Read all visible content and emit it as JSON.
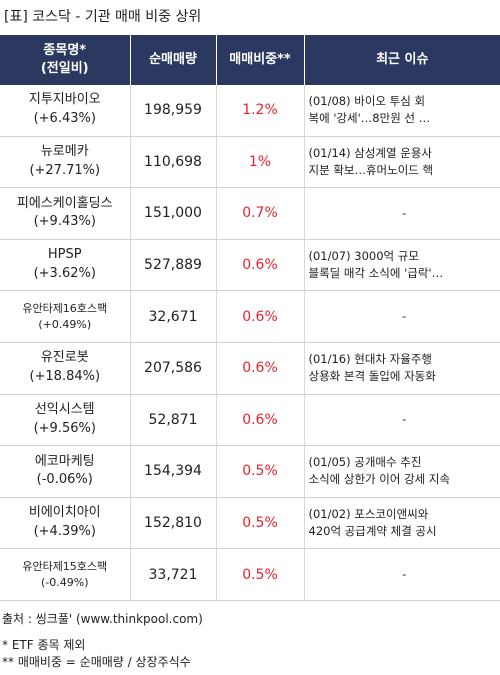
{
  "title": "[표] 코스닥 - 기관 매매 비중 상위",
  "header": {
    "col1_line1": "종목명*",
    "col1_line2": "(전일비)",
    "col2": "순매매량",
    "col3": "매매비중**",
    "col4": "최근 이슈"
  },
  "rows": [
    {
      "name": "지투지바이오",
      "change": "(+6.43%)",
      "volume": "198,959",
      "ratio": "1.2%",
      "issue_line1": "(01/08) 바이오 투심 회",
      "issue_line2": "복에 '강세'…8만원 선 …"
    },
    {
      "name": "뉴로메카",
      "change": "(+27.71%)",
      "volume": "110,698",
      "ratio": "1%",
      "issue_line1": "(01/14) 삼성계열 운용사",
      "issue_line2": " 지분 확보…휴머노이드 핵"
    },
    {
      "name": "피에스케이홀딩스",
      "change": "(+9.43%)",
      "volume": "151,000",
      "ratio": "0.7%",
      "issue_line1": "-",
      "issue_line2": ""
    },
    {
      "name": "HPSP",
      "change": "(+3.62%)",
      "volume": "527,889",
      "ratio": "0.6%",
      "issue_line1": "(01/07) 3000억 규모",
      "issue_line2": " 블록딜 매각 소식에 '급락'…"
    },
    {
      "name": "유안타제16호스팩",
      "change": "(+0.49%)",
      "volume": "32,671",
      "ratio": "0.6%",
      "issue_line1": "-",
      "issue_line2": ""
    },
    {
      "name": "유진로봇",
      "change": "(+18.84%)",
      "volume": "207,586",
      "ratio": "0.6%",
      "issue_line1": "(01/16) 현대차 자율주행",
      "issue_line2": " 상용화 본격 돌입에 자동화"
    },
    {
      "name": "선익시스템",
      "change": "(+9.56%)",
      "volume": "52,871",
      "ratio": "0.6%",
      "issue_line1": "-",
      "issue_line2": ""
    },
    {
      "name": "에코마케팅",
      "change": "(-0.06%)",
      "volume": "154,394",
      "ratio": "0.5%",
      "issue_line1": "(01/05) 공개매수 추진",
      "issue_line2": "소식에 상한가 이어 강세 지속"
    },
    {
      "name": "비에이치아이",
      "change": "(+4.39%)",
      "volume": "152,810",
      "ratio": "0.5%",
      "issue_line1": "(01/02) 포스코이앤씨와",
      "issue_line2": "420억 공급계약 체결 공시"
    },
    {
      "name": "유안타제15호스팩",
      "change": "(-0.49%)",
      "volume": "33,721",
      "ratio": "0.5%",
      "issue_line1": "-",
      "issue_line2": ""
    }
  ],
  "footer": {
    "source": "출처 : 씽크풀' (www.thinkpool.com)",
    "note1": "* ETF 종목 제외",
    "note2": "** 매매비중 = 순매매량 / 상장주식수"
  },
  "colors": {
    "header_bg": "#2b3961",
    "ratio_text": "#e8232d"
  }
}
